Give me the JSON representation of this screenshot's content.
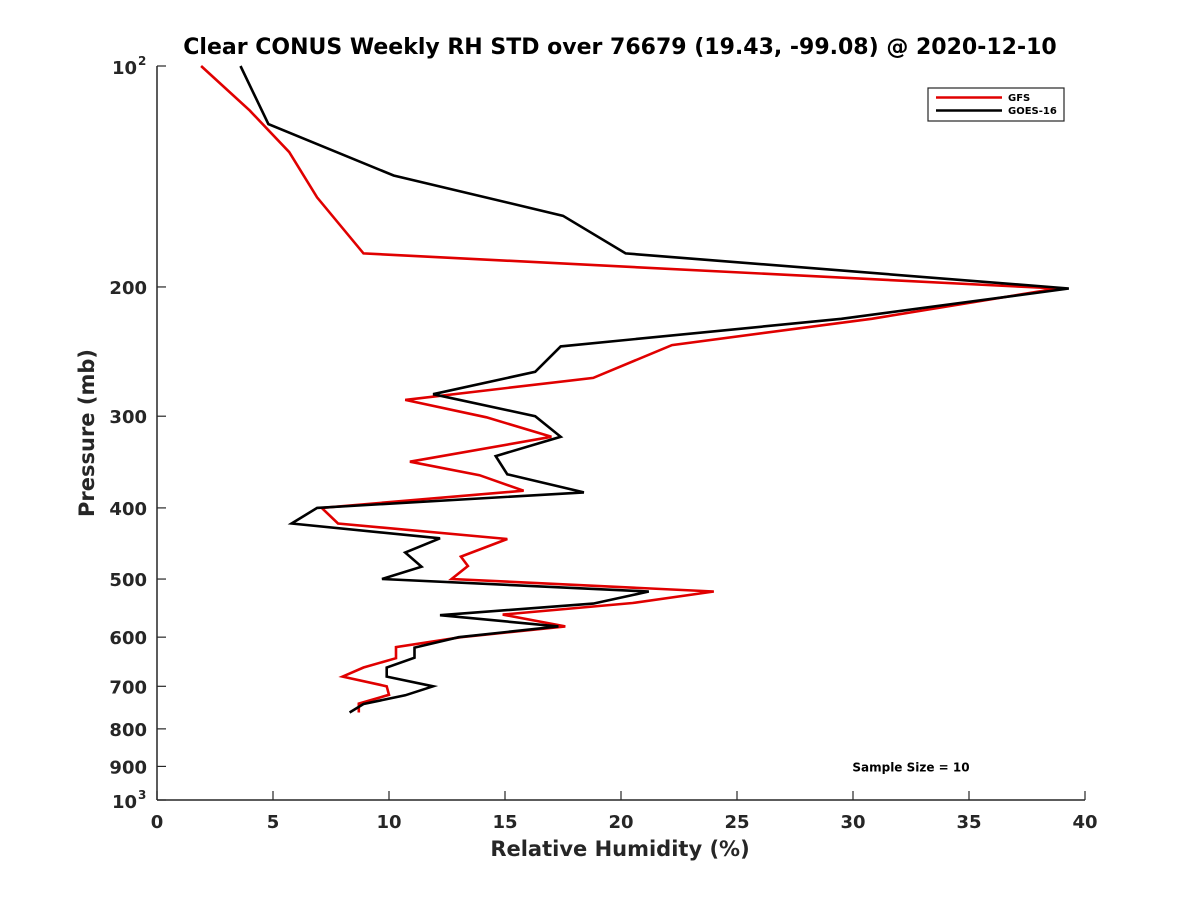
{
  "chart_data": {
    "type": "line",
    "title": "Clear CONUS Weekly RH STD over 76679 (19.43, -99.08) @ 2020-12-10",
    "xlabel": "Relative Humidity (%)",
    "ylabel": "Pressure (mb)",
    "xlim": [
      0,
      40
    ],
    "ylim": [
      100,
      1000
    ],
    "yscale": "log",
    "yaxis_reversed": true,
    "grid": false,
    "legend_position": "top-right",
    "x_ticks": [
      {
        "value": 0,
        "label": "0"
      },
      {
        "value": 5,
        "label": "5"
      },
      {
        "value": 10,
        "label": "10"
      },
      {
        "value": 15,
        "label": "15"
      },
      {
        "value": 20,
        "label": "20"
      },
      {
        "value": 25,
        "label": "25"
      },
      {
        "value": 30,
        "label": "30"
      },
      {
        "value": 35,
        "label": "35"
      },
      {
        "value": 40,
        "label": "40"
      }
    ],
    "y_ticks": [
      {
        "value": 100,
        "label": "10",
        "exponent": "2"
      },
      {
        "value": 200,
        "label": "200"
      },
      {
        "value": 300,
        "label": "300"
      },
      {
        "value": 400,
        "label": "400"
      },
      {
        "value": 500,
        "label": "500"
      },
      {
        "value": 600,
        "label": "600"
      },
      {
        "value": 700,
        "label": "700"
      },
      {
        "value": 800,
        "label": "800"
      },
      {
        "value": 900,
        "label": "900"
      },
      {
        "value": 1000,
        "label": "10",
        "exponent": "3"
      }
    ],
    "series": [
      {
        "name": "GFS",
        "color": "#e00000",
        "points": [
          {
            "x": 1.9,
            "y": 100
          },
          {
            "x": 4.0,
            "y": 115
          },
          {
            "x": 5.7,
            "y": 131
          },
          {
            "x": 6.9,
            "y": 151
          },
          {
            "x": 8.9,
            "y": 180
          },
          {
            "x": 37.5,
            "y": 200
          },
          {
            "x": 38.8,
            "y": 201
          },
          {
            "x": 30.8,
            "y": 221
          },
          {
            "x": 22.2,
            "y": 240
          },
          {
            "x": 18.8,
            "y": 266
          },
          {
            "x": 10.7,
            "y": 285
          },
          {
            "x": 14.2,
            "y": 301
          },
          {
            "x": 17.0,
            "y": 320
          },
          {
            "x": 10.9,
            "y": 346
          },
          {
            "x": 13.9,
            "y": 361
          },
          {
            "x": 15.8,
            "y": 379
          },
          {
            "x": 7.1,
            "y": 400
          },
          {
            "x": 7.8,
            "y": 420
          },
          {
            "x": 15.1,
            "y": 441
          },
          {
            "x": 13.1,
            "y": 466
          },
          {
            "x": 13.4,
            "y": 480
          },
          {
            "x": 12.7,
            "y": 500
          },
          {
            "x": 24.0,
            "y": 520
          },
          {
            "x": 20.5,
            "y": 539
          },
          {
            "x": 14.9,
            "y": 559
          },
          {
            "x": 17.6,
            "y": 580
          },
          {
            "x": 13.1,
            "y": 600
          },
          {
            "x": 10.3,
            "y": 619
          },
          {
            "x": 10.3,
            "y": 641
          },
          {
            "x": 8.9,
            "y": 660
          },
          {
            "x": 8.0,
            "y": 679
          },
          {
            "x": 9.9,
            "y": 700
          },
          {
            "x": 10.0,
            "y": 719
          },
          {
            "x": 8.7,
            "y": 739
          },
          {
            "x": 8.7,
            "y": 760
          }
        ]
      },
      {
        "name": "GOES-16",
        "color": "#000000",
        "points": [
          {
            "x": 3.6,
            "y": 100
          },
          {
            "x": 4.8,
            "y": 120
          },
          {
            "x": 10.2,
            "y": 141
          },
          {
            "x": 17.5,
            "y": 160
          },
          {
            "x": 20.2,
            "y": 180
          },
          {
            "x": 39.3,
            "y": 201
          },
          {
            "x": 29.5,
            "y": 221
          },
          {
            "x": 17.4,
            "y": 241
          },
          {
            "x": 16.3,
            "y": 261
          },
          {
            "x": 11.9,
            "y": 280
          },
          {
            "x": 16.3,
            "y": 300
          },
          {
            "x": 17.4,
            "y": 320
          },
          {
            "x": 14.6,
            "y": 340
          },
          {
            "x": 15.1,
            "y": 360
          },
          {
            "x": 18.4,
            "y": 381
          },
          {
            "x": 6.9,
            "y": 400
          },
          {
            "x": 5.8,
            "y": 420
          },
          {
            "x": 12.2,
            "y": 440
          },
          {
            "x": 10.7,
            "y": 460
          },
          {
            "x": 11.4,
            "y": 481
          },
          {
            "x": 9.7,
            "y": 500
          },
          {
            "x": 21.2,
            "y": 520
          },
          {
            "x": 18.8,
            "y": 540
          },
          {
            "x": 12.2,
            "y": 560
          },
          {
            "x": 17.3,
            "y": 580
          },
          {
            "x": 13.0,
            "y": 600
          },
          {
            "x": 11.1,
            "y": 620
          },
          {
            "x": 11.1,
            "y": 640
          },
          {
            "x": 9.9,
            "y": 660
          },
          {
            "x": 9.9,
            "y": 679
          },
          {
            "x": 11.9,
            "y": 700
          },
          {
            "x": 10.7,
            "y": 720
          },
          {
            "x": 8.9,
            "y": 740
          },
          {
            "x": 8.3,
            "y": 760
          }
        ]
      }
    ],
    "annotations": [
      {
        "text": "Sample Size = 10",
        "x": 32.5,
        "y": 900
      }
    ]
  }
}
